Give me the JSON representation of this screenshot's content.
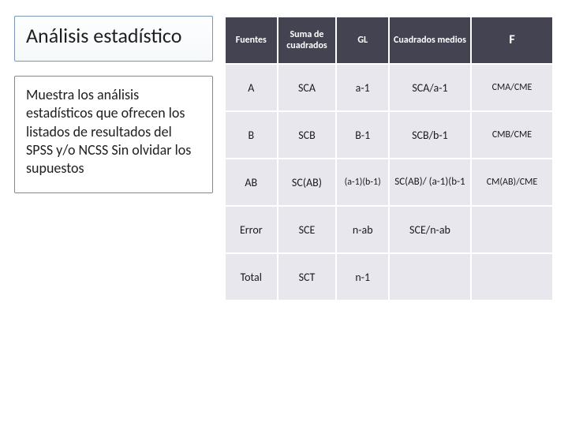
{
  "title": "Análisis estadístico",
  "description": "Muestra los análisis estadísticos que ofrecen los listados de resultados del SPSS  y/o NCSS Sin olvidar los supuestos",
  "table": {
    "headers": {
      "fuentes": "Fuentes",
      "suma": "Suma de cuadrados",
      "gl": "GL",
      "cuadrados_medios": "Cuadrados medios",
      "f": "F"
    },
    "rows": [
      {
        "fuente": "A",
        "suma": "SCA",
        "gl": "a-1",
        "cm": "SCA/a-1",
        "f": "CMA/CME"
      },
      {
        "fuente": "B",
        "suma": "SCB",
        "gl": "B-1",
        "cm": "SCB/b-1",
        "f": "CMB/CME"
      },
      {
        "fuente": "AB",
        "suma": "SC(AB)",
        "gl": "(a-1)(b-1)",
        "cm": "SC(AB)/ (a-1)(b-1",
        "f": "CM(AB)/CME"
      },
      {
        "fuente": "Error",
        "suma": "SCE",
        "gl": "n-ab",
        "cm": "SCE/n-ab",
        "f": ""
      },
      {
        "fuente": "Total",
        "suma": "SCT",
        "gl": "n-1",
        "cm": "",
        "f": ""
      }
    ]
  },
  "colors": {
    "header_bg": "#434351",
    "header_text": "#ffffff",
    "cell_bg": "#e9e7ee",
    "cell_text": "#1a1a1a",
    "title_border": "#7a97b8",
    "desc_border": "#888888"
  }
}
